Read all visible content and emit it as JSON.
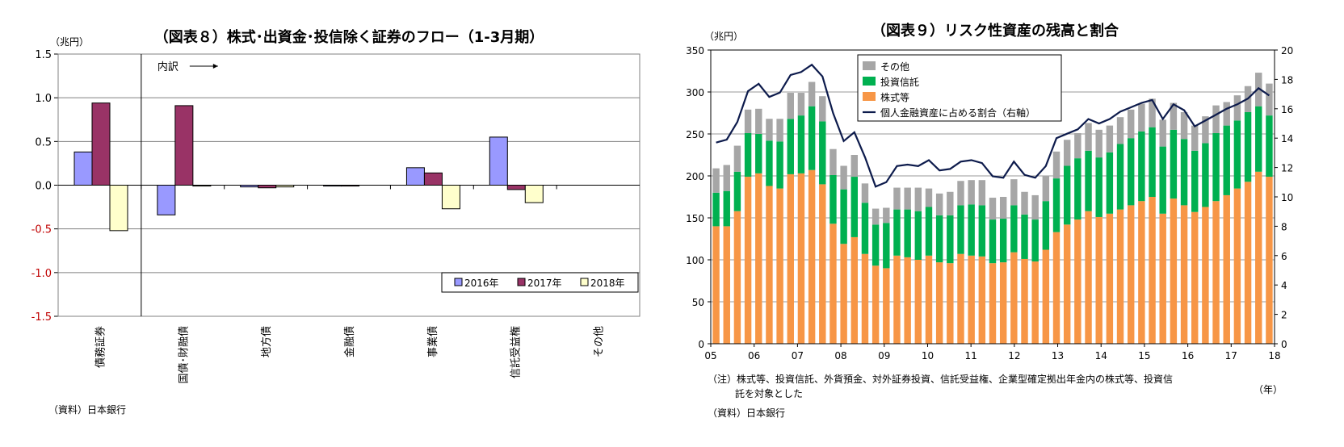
{
  "chart_data": [
    {
      "type": "bar",
      "title": "（図表８）株式･出資金･投信除く証券のフロー（1-3月期）",
      "unit_label": "（兆円）",
      "annotation": "内訳",
      "categories": [
        "債務証券",
        "国債･財融債",
        "地方債",
        "金融債",
        "事業債",
        "信託受益権",
        "その他"
      ],
      "ylim": [
        -1.5,
        1.5
      ],
      "yticks": [
        -1.5,
        -1.0,
        -0.5,
        0.0,
        0.5,
        1.0,
        1.5
      ],
      "ytick_labels": [
        "-1.5",
        "-1.0",
        "-0.5",
        "0.0",
        "0.5",
        "1.0",
        "1.5"
      ],
      "legend_position": "bottom-right",
      "series": [
        {
          "name": "2016年",
          "color": "#9999ff",
          "values": [
            0.38,
            -0.34,
            -0.02,
            -0.01,
            0.2,
            0.55,
            0.0
          ]
        },
        {
          "name": "2017年",
          "color": "#993366",
          "values": [
            0.94,
            0.91,
            -0.03,
            -0.01,
            0.14,
            -0.05,
            0.0
          ]
        },
        {
          "name": "2018年",
          "color": "#ffffcc",
          "values": [
            -0.52,
            -0.01,
            -0.02,
            0.0,
            -0.27,
            -0.2,
            0.0
          ]
        }
      ],
      "source": "（資料）日本銀行"
    },
    {
      "type": "bar",
      "stacked": true,
      "title": "（図表９）リスク性資産の残高と割合",
      "unit_label": "（兆円）",
      "x_unit": "（年）",
      "ylim": [
        0,
        350
      ],
      "yticks": [
        0,
        50,
        100,
        150,
        200,
        250,
        300,
        350
      ],
      "y2lim": [
        0,
        20
      ],
      "y2ticks": [
        0,
        2,
        4,
        6,
        8,
        10,
        12,
        14,
        16,
        18,
        20
      ],
      "year_labels": [
        "05",
        "06",
        "07",
        "08",
        "09",
        "10",
        "11",
        "12",
        "13",
        "14",
        "15",
        "16",
        "17",
        "18"
      ],
      "legend_position": "top-left",
      "series": [
        {
          "name": "株式等",
          "color": "#f79646",
          "values": [
            140,
            140,
            158,
            199,
            203,
            188,
            185,
            202,
            203,
            207,
            190,
            143,
            119,
            127,
            107,
            93,
            90,
            105,
            103,
            100,
            105,
            97,
            96,
            107,
            105,
            104,
            96,
            97,
            109,
            101,
            98,
            112,
            133,
            142,
            148,
            158,
            151,
            155,
            160,
            165,
            170,
            175,
            155,
            173,
            165,
            157,
            163,
            170,
            177,
            185,
            193,
            205,
            199
          ]
        },
        {
          "name": "投資信託",
          "color": "#00b050",
          "values": [
            40,
            42,
            47,
            52,
            47,
            54,
            56,
            66,
            69,
            76,
            75,
            58,
            65,
            72,
            61,
            49,
            54,
            55,
            57,
            58,
            58,
            56,
            57,
            58,
            61,
            61,
            52,
            52,
            56,
            53,
            50,
            58,
            64,
            70,
            73,
            72,
            71,
            73,
            78,
            80,
            83,
            83,
            80,
            82,
            79,
            73,
            76,
            81,
            83,
            81,
            83,
            78,
            73
          ]
        },
        {
          "name": "その他",
          "color": "#a6a6a6",
          "values": [
            29,
            31,
            31,
            28,
            30,
            26,
            27,
            31,
            27,
            29,
            30,
            31,
            28,
            26,
            23,
            19,
            18,
            26,
            26,
            28,
            22,
            26,
            28,
            29,
            29,
            30,
            26,
            26,
            31,
            27,
            29,
            30,
            32,
            31,
            30,
            33,
            33,
            32,
            32,
            34,
            33,
            34,
            32,
            32,
            32,
            30,
            32,
            33,
            28,
            30,
            31,
            40,
            38
          ]
        },
        {
          "name": "個人金融資産に占める割合（右軸）",
          "color": "#0d1b4c",
          "axis": "right",
          "values": [
            13.7,
            13.9,
            15.1,
            17.2,
            17.7,
            16.8,
            17.1,
            18.3,
            18.5,
            19.0,
            18.2,
            15.7,
            13.8,
            14.4,
            12.7,
            10.7,
            11.0,
            12.1,
            12.2,
            12.1,
            12.5,
            11.8,
            11.9,
            12.4,
            12.5,
            12.3,
            11.4,
            11.3,
            12.4,
            11.5,
            11.3,
            12.1,
            14.0,
            14.3,
            14.6,
            15.3,
            15.0,
            15.3,
            15.8,
            16.1,
            16.4,
            16.6,
            15.3,
            16.3,
            15.9,
            14.8,
            15.2,
            15.6,
            16.0,
            16.3,
            16.7,
            17.4,
            16.9
          ]
        }
      ],
      "note_lines": [
        "（注）株式等、投資信託、外貨預金、対外証券投資、信託受益権、企業型確定拠出年金内の株式等、投資信",
        "託を対象とした"
      ],
      "source": "（資料）日本銀行"
    }
  ]
}
